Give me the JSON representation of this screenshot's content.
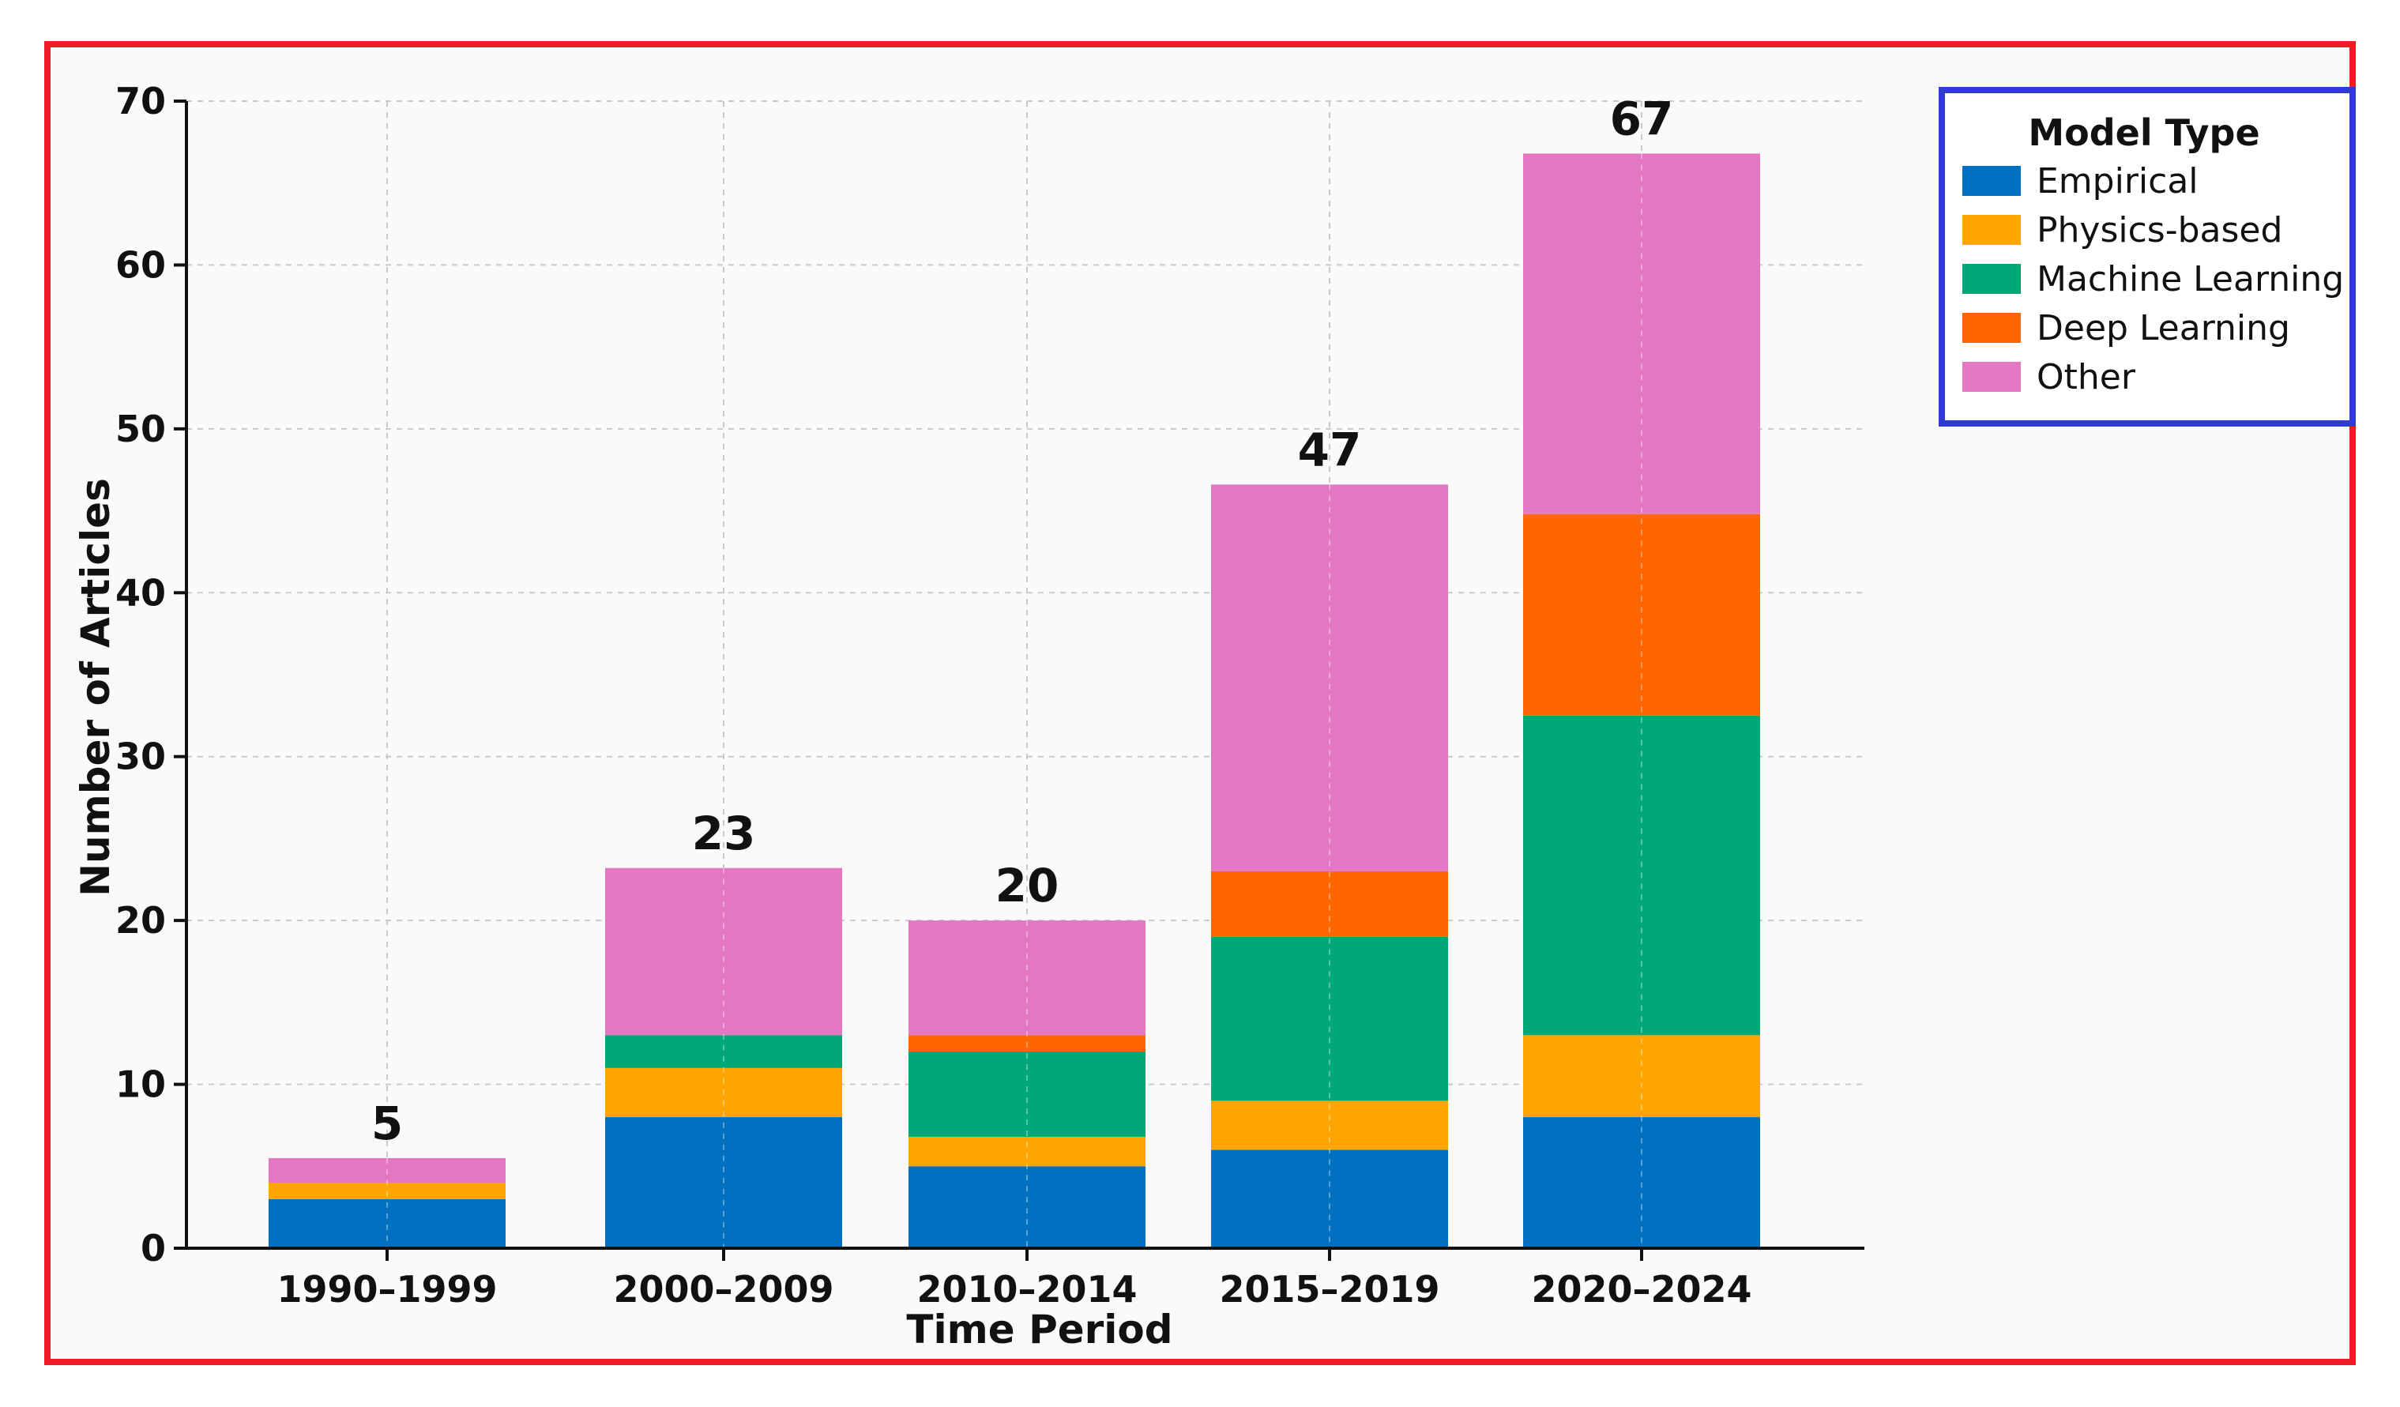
{
  "chart_data": {
    "type": "bar",
    "stacked": true,
    "categories": [
      "1990–1999",
      "2000–2009",
      "2010–2014",
      "2015–2019",
      "2020–2024"
    ],
    "totals": [
      5,
      23,
      20,
      47,
      67
    ],
    "series": [
      {
        "name": "Empirical",
        "color": "#0070c0",
        "values": [
          3,
          8,
          5,
          6,
          8
        ]
      },
      {
        "name": "Physics-based",
        "color": "#ffa500",
        "values": [
          1,
          3,
          1.8,
          3,
          5
        ]
      },
      {
        "name": "Machine Learning",
        "color": "#00a878",
        "values": [
          0,
          2,
          5.2,
          10,
          19.5
        ]
      },
      {
        "name": "Deep Learning",
        "color": "#ff6600",
        "values": [
          0,
          0,
          1,
          4,
          12.3
        ]
      },
      {
        "name": "Other",
        "color": "#e377c2",
        "values": [
          1.5,
          10.2,
          7,
          23.6,
          22
        ]
      }
    ],
    "xlabel": "Time Period",
    "ylabel": "Number of Articles",
    "ylim": [
      0,
      70
    ],
    "yticks": [
      0,
      10,
      20,
      30,
      40,
      50,
      60,
      70
    ],
    "grid": true,
    "legend": {
      "title": "Model Type",
      "placement": "top-right, outside plot"
    }
  }
}
